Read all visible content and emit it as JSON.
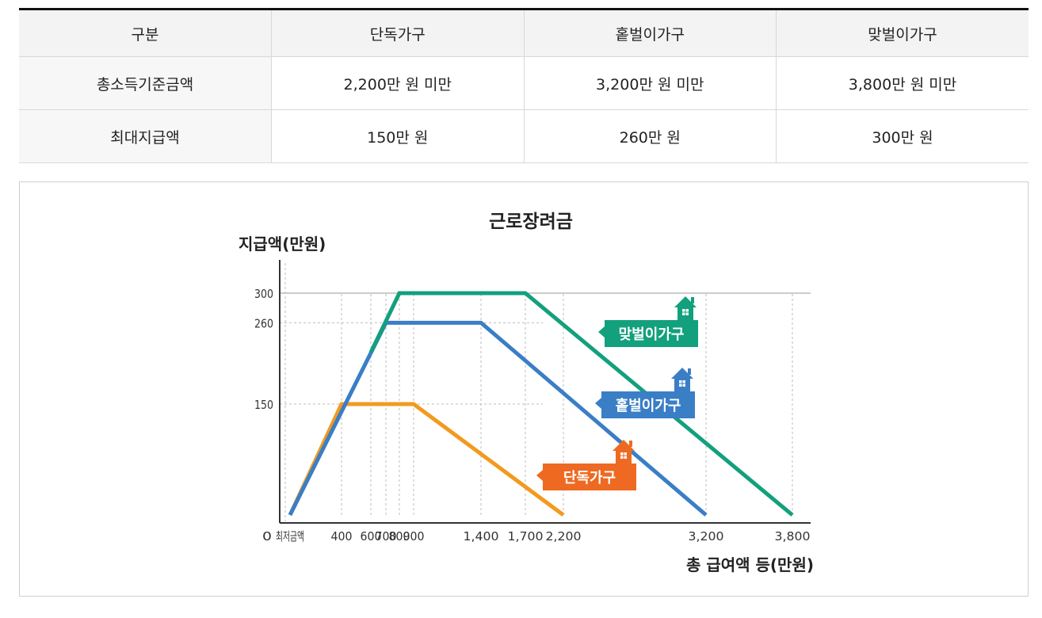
{
  "table": {
    "headers": [
      "구분",
      "단독가구",
      "홑벌이가구",
      "맞벌이가구"
    ],
    "rows": [
      {
        "label": "총소득기준금액",
        "values": [
          "2,200만 원 미만",
          "3,200만 원 미만",
          "3,800만 원 미만"
        ]
      },
      {
        "label": "최대지급액",
        "values": [
          "150만 원",
          "260만 원",
          "300만 원"
        ]
      }
    ]
  },
  "chart_data": {
    "type": "line",
    "title": "근로장려금",
    "ylabel": "지급액(만원)",
    "xlabel": "총 급여액 등(만원)",
    "x_tick_labels": [
      "0",
      "최저금액",
      "400",
      "600",
      "700",
      "800",
      "900",
      "1,400",
      "1,700",
      "2,200",
      "3,200",
      "3,800"
    ],
    "y_tick_labels": [
      "300",
      "260",
      "150"
    ],
    "series": [
      {
        "name": "단독가구",
        "color": "#f29a1f",
        "label_color": "#ee6a22",
        "points": [
          [
            100,
            0
          ],
          [
            400,
            150
          ],
          [
            900,
            150
          ],
          [
            2200,
            0
          ]
        ]
      },
      {
        "name": "홑벌이가구",
        "color": "#3a7ec6",
        "label_color": "#3a7ec6",
        "points": [
          [
            100,
            0
          ],
          [
            700,
            260
          ],
          [
            1400,
            260
          ],
          [
            3200,
            0
          ]
        ]
      },
      {
        "name": "맞벌이가구",
        "color": "#13a07c",
        "label_color": "#13a07c",
        "points": [
          [
            600,
            220
          ],
          [
            800,
            300
          ],
          [
            1700,
            300
          ],
          [
            3800,
            0
          ]
        ]
      }
    ]
  }
}
